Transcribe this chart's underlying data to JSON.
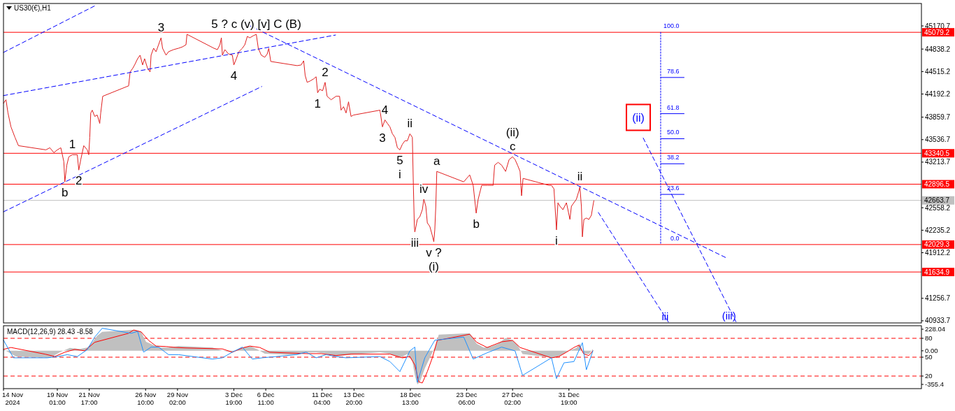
{
  "chart_data": [
    {
      "type": "line",
      "title": "US30(€),H1",
      "xlim": [
        "2024-11-14T13:00",
        "2025-01-30T06:00"
      ],
      "ylim": [
        40903,
        45493
      ],
      "tick_labels": "y",
      "grid": false,
      "yticks": [
        45170.7,
        44838.2,
        44515.2,
        44192.2,
        43859.7,
        43536.7,
        43213.7,
        42558.2,
        42235.2,
        41912.2,
        41256.7,
        40933.7
      ],
      "series": [
        {
          "color": "#e02020",
          "x": [
            "2024-11-14T13:00",
            "2024-11-14T18:00",
            "2024-11-14T22:00",
            "2024-11-15T04:00",
            "2024-11-15T12:00",
            "2024-11-15T19:00",
            "2024-11-18T02:00",
            "2024-11-18T10:00",
            "2024-11-18T18:00",
            "2024-11-19T01:00",
            "2024-11-19T08:00",
            "2024-11-19T14:00",
            "2024-11-19T16:00",
            "2024-11-19T20:00",
            "2024-11-20T00:00",
            "2024-11-20T07:00",
            "2024-11-20T17:00",
            "2024-11-20T20:00",
            "2024-11-21T00:00",
            "2024-11-21T06:00",
            "2024-11-21T13:00",
            "2024-11-21T16:00",
            "2024-11-21T18:00",
            "2024-11-21T20:00",
            "2024-11-21T23:00",
            "2024-11-22T04:00",
            "2024-11-22T09:00",
            "2024-11-22T14:00",
            "2024-11-22T16:00",
            "2024-11-22T20:00",
            "2024-11-25T00:00",
            "2024-11-25T03:00",
            "2024-11-25T08:00",
            "2024-11-25T12:00",
            "2024-11-25T18:00",
            "2024-11-25T23:00",
            "2024-11-26T04:00",
            "2024-11-26T08:00",
            "2024-11-26T14:00",
            "2024-11-26T19:00",
            "2024-11-26T21:00",
            "2024-11-27T02:00",
            "2024-11-27T07:00",
            "2024-11-27T12:00",
            "2024-11-27T17:00",
            "2024-11-27T20:00",
            "2024-11-28T03:00",
            "2024-11-28T08:00",
            "2024-11-28T18:00",
            "2024-11-29T04:00",
            "2024-11-29T12:00",
            "2024-11-29T19:00",
            "2024-11-29T21:00",
            "2024-12-02T03:00",
            "2024-12-02T10:00",
            "2024-12-02T15:00",
            "2024-12-02T18:00",
            "2024-12-02T20:00",
            "2024-12-03T01:00",
            "2024-12-03T08:00",
            "2024-12-03T16:00",
            "2024-12-03T19:00",
            "2024-12-04T00:00",
            "2024-12-04T05:00",
            "2024-12-04T12:00",
            "2024-12-04T17:00",
            "2024-12-04T22:00",
            "2024-12-05T03:00",
            "2024-12-05T10:00",
            "2024-12-05T16:00",
            "2024-12-05T20:00",
            "2024-12-06T02:00",
            "2024-12-06T09:00",
            "2024-12-06T14:00",
            "2024-12-06T17:00",
            "2024-12-06T21:00",
            "2024-12-09T02:00",
            "2024-12-09T10:00",
            "2024-12-09T15:00",
            "2024-12-09T18:00",
            "2024-12-09T22:00",
            "2024-12-10T04:00",
            "2024-12-10T11:00",
            "2024-12-10T16:00",
            "2024-12-10T19:00",
            "2024-12-10T23:00",
            "2024-12-11T05:00",
            "2024-12-11T10:00",
            "2024-12-11T14:00",
            "2024-12-11T22:00",
            "2024-12-12T08:00",
            "2024-12-12T15:00",
            "2024-12-12T18:00",
            "2024-12-12T23:00",
            "2024-12-13T04:00",
            "2024-12-13T09:00",
            "2024-12-13T14:00",
            "2024-12-13T19:00",
            "2024-12-16T00:00",
            "2024-12-16T05:00",
            "2024-12-16T10:00",
            "2024-12-16T15:00",
            "2024-12-16T20:00",
            "2024-12-17T01:00",
            "2024-12-17T06:00",
            "2024-12-17T11:00",
            "2024-12-17T16:00",
            "2024-12-17T21:00",
            "2024-12-18T02:00",
            "2024-12-18T07:00",
            "2024-12-18T12:00",
            "2024-12-18T17:00",
            "2024-12-18T19:00",
            "2024-12-18T21:00",
            "2024-12-18T22:00",
            "2024-12-19T03:00",
            "2024-12-19T08:00",
            "2024-12-19T13:00",
            "2024-12-19T16:00",
            "2024-12-19T20:00",
            "2024-12-19T23:00",
            "2024-12-20T04:00",
            "2024-12-20T09:00",
            "2024-12-20T12:00",
            "2024-12-20T14:00",
            "2024-12-20T16:00",
            "2024-12-20T18:00",
            "2024-12-23T00:00",
            "2024-12-23T12:00",
            "2024-12-23T19:00",
            "2024-12-24T01:00",
            "2024-12-24T05:00",
            "2024-12-24T12:00",
            "2024-12-25T00:00",
            "2024-12-25T11:00",
            "2024-12-25T14:00",
            "2024-12-25T21:00",
            "2024-12-26T04:00",
            "2024-12-26T12:00",
            "2024-12-26T19:00",
            "2024-12-27T02:00",
            "2024-12-27T07:00",
            "2024-12-27T12:00",
            "2024-12-27T17:00",
            "2024-12-27T20:00",
            "2024-12-27T23:00",
            "2024-12-30T03:00",
            "2024-12-30T08:00",
            "2024-12-30T13:00",
            "2024-12-30T16:00",
            "2024-12-30T18:00",
            "2024-12-30T21:00",
            "2024-12-31T01:00",
            "2024-12-31T07:00",
            "2024-12-31T14:00",
            "2024-12-31T17:00",
            "2024-12-31T21:00",
            "2025-01-01T00:00",
            "2025-01-01T05:00",
            "2025-01-01T10:00",
            "2025-01-01T15:00",
            "2025-01-01T17:00",
            "2025-01-01T20:00",
            "2025-01-01T22:00",
            "2025-01-02T01:00",
            "2025-01-02T06:00",
            "2025-01-02T11:00",
            "2025-01-02T16:00",
            "2025-01-02T19:00",
            "2025-01-02T21:00"
          ],
          "values": [
            44060,
            44110,
            43920,
            43720,
            43570,
            43450,
            43390,
            43420,
            43350,
            43390,
            43420,
            43220,
            42930,
            43170,
            43290,
            43320,
            43320,
            43100,
            43250,
            43450,
            43390,
            43320,
            43570,
            43920,
            43960,
            43870,
            43890,
            43770,
            43920,
            44160,
            44310,
            44510,
            44560,
            44610,
            44700,
            44750,
            44610,
            44700,
            44560,
            44510,
            44750,
            44850,
            44800,
            44900,
            45000,
            44850,
            44750,
            44800,
            44830,
            44850,
            44870,
            44900,
            45050,
            44850,
            44830,
            44900,
            45000,
            44750,
            44830,
            44770,
            44750,
            44610,
            44700,
            44800,
            44850,
            44900,
            45020,
            45000,
            45030,
            45050,
            44850,
            44750,
            44720,
            44770,
            44850,
            44660,
            44600,
            44610,
            44670,
            44460,
            44360,
            44380,
            44410,
            44440,
            44210,
            44260,
            44240,
            44360,
            44160,
            44110,
            44160,
            44160,
            43960,
            44010,
            43920,
            44080,
            43870,
            43890,
            43960,
            43720,
            43820,
            43770,
            43720,
            43620,
            43570,
            43420,
            43390,
            43470,
            43520,
            43520,
            43620,
            43570,
            42880,
            42290,
            42210,
            42390,
            42430,
            42530,
            42680,
            42580,
            42340,
            42290,
            42160,
            42070,
            42240,
            42580,
            43080,
            42930,
            43030,
            42880,
            42480,
            42680,
            42880,
            42880,
            42880,
            43170,
            43210,
            43170,
            43080,
            43250,
            43290,
            43250,
            43170,
            43080,
            42730,
            42980,
            42880,
            42880,
            42830,
            42480,
            42240,
            42630,
            42580,
            42530,
            42630,
            42530,
            42390,
            42580,
            42630,
            42680,
            42800,
            42860,
            42580,
            42140,
            42390,
            42410,
            42390,
            42450,
            42580,
            42660
          ]
        },
        {
          "color": "#0000ff",
          "line_style": "dashed",
          "x": [
            "2024-11-14T13:00",
            "2024-11-22T07:00"
          ],
          "values": [
            44790,
            45470
          ]
        },
        {
          "color": "#0000ff",
          "line_style": "dashed",
          "x": [
            "2024-11-14T13:00",
            "2024-12-12T07:00"
          ],
          "values": [
            44170,
            45040
          ]
        },
        {
          "color": "#0000ff",
          "line_style": "dashed",
          "x": [
            "2024-11-14T13:00",
            "2024-12-06T03:00"
          ],
          "values": [
            42500,
            44300
          ]
        },
        {
          "color": "#0000ff",
          "line_style": "dashed",
          "x": [
            "2024-12-05T04:00",
            "2025-01-14T01:00"
          ],
          "values": [
            45170,
            41830
          ]
        },
        {
          "color": "#0000ff",
          "line_style": "dashed",
          "x": [
            "2025-01-03T06:00",
            "2025-01-09T03:00"
          ],
          "values": [
            42490,
            40910
          ]
        },
        {
          "color": "#0000ff",
          "line_style": "dashed",
          "x": [
            "2025-01-07T00:00",
            "2025-01-14T18:00"
          ],
          "values": [
            43560,
            40920
          ]
        },
        {
          "color": "#0000ff",
          "line_style": "dotted",
          "x": [
            "2025-01-08T11:00",
            "2025-01-08T11:00"
          ],
          "values": [
            45079.2,
            42029.3
          ]
        },
        {
          "color": "#0000ff",
          "x": [
            "2025-01-08T11:00",
            "2025-01-10T10:00"
          ],
          "values": [
            44430,
            44430
          ]
        },
        {
          "color": "#0000ff",
          "x": [
            "2025-01-08T11:00",
            "2025-01-10T10:00"
          ],
          "values": [
            43910,
            43910
          ]
        },
        {
          "color": "#0000ff",
          "x": [
            "2025-01-08T11:00",
            "2025-01-10T10:00"
          ],
          "values": [
            43550,
            43550
          ]
        },
        {
          "color": "#0000ff",
          "x": [
            "2025-01-08T11:00",
            "2025-01-10T10:00"
          ],
          "values": [
            43190,
            43190
          ]
        },
        {
          "color": "#0000ff",
          "x": [
            "2025-01-08T11:00",
            "2025-01-10T10:00"
          ],
          "values": [
            42750,
            42750
          ]
        }
      ],
      "annotations": [
        {
          "text": "5 ? c (v) [v] C (B)",
          "x": "2024-12-05T16:00",
          "y": 45050
        },
        {
          "text": "3",
          "x": "2024-11-27T17:00",
          "y": 45000
        },
        {
          "text": "1",
          "x": "2024-11-20T07:00",
          "y": 43320
        },
        {
          "text": "2",
          "x": "2024-11-20T20:00",
          "y": 43100
        },
        {
          "text": "b",
          "x": "2024-11-19T16:00",
          "y": 42930
        },
        {
          "text": "4",
          "x": "2024-12-03T19:00",
          "y": 44610
        },
        {
          "text": "2",
          "x": "2024-12-11T10:00",
          "y": 44360
        },
        {
          "text": "1",
          "x": "2024-12-10T19:00",
          "y": 44210
        },
        {
          "text": "4",
          "x": "2024-12-16T10:00",
          "y": 43820
        },
        {
          "text": "3",
          "x": "2024-12-16T05:00",
          "y": 43720
        },
        {
          "text": "5",
          "x": "2024-12-17T16:00",
          "y": 43390
        },
        {
          "text": "i",
          "x": "2024-12-17T16:00",
          "y": 43390
        },
        {
          "text": "ii",
          "x": "2024-12-18T12:00",
          "y": 43620
        },
        {
          "text": "iii",
          "x": "2024-12-18T22:00",
          "y": 42210
        },
        {
          "text": "iv",
          "x": "2024-12-19T16:00",
          "y": 42680
        },
        {
          "text": "a",
          "x": "2024-12-20T18:00",
          "y": 43080
        },
        {
          "text": "b",
          "x": "2024-12-24T01:00",
          "y": 42480
        },
        {
          "text": "v ?",
          "x": "2024-12-20T12:00",
          "y": 42070
        },
        {
          "text": "(i)",
          "x": "2024-12-20T12:00",
          "y": 42070
        },
        {
          "text": "c",
          "x": "2024-12-27T02:00",
          "y": 43290
        },
        {
          "text": "(ii)",
          "x": "2024-12-27T02:00",
          "y": 43290
        },
        {
          "text": "i",
          "x": "2024-12-30T18:00",
          "y": 42240
        },
        {
          "text": "ii",
          "x": "2025-01-01T17:00",
          "y": 42860
        },
        {
          "text": "(ii)",
          "x": "2025-01-07T00:00",
          "y": 43560
        },
        {
          "text": "iii",
          "x": "2025-01-09T03:00",
          "y": 40910
        },
        {
          "text": "(iii)",
          "x": "2025-01-14T18:00",
          "y": 40920
        },
        {
          "text": "100.0",
          "x": "2025-01-10T10:00",
          "y": 45079.2
        },
        {
          "text": "78.6",
          "x": "2025-01-10T10:00",
          "y": 44430
        },
        {
          "text": "61.8",
          "x": "2025-01-10T10:00",
          "y": 43910
        },
        {
          "text": "50.0",
          "x": "2025-01-10T10:00",
          "y": 43550
        },
        {
          "text": "38.2",
          "x": "2025-01-10T10:00",
          "y": 43190
        },
        {
          "text": "23.6",
          "x": "2025-01-10T10:00",
          "y": 42750
        },
        {
          "text": "0.0",
          "x": "2025-01-10T10:00",
          "y": 42029.3
        }
      ],
      "ref_lines": [
        {
          "axis": "y",
          "value": 45079.2,
          "label": "45079.2",
          "color": "#ff0000"
        },
        {
          "axis": "y",
          "value": 43340.5,
          "label": "43340.5",
          "color": "#ff0000"
        },
        {
          "axis": "y",
          "value": 42896.5,
          "label": "42896.5",
          "color": "#ff0000"
        },
        {
          "axis": "y",
          "value": 42663.7,
          "label": "42663.7",
          "color": "#c0c0c0"
        },
        {
          "axis": "y",
          "value": 42029.3,
          "label": "42029.3",
          "color": "#ff0000"
        },
        {
          "axis": "y",
          "value": 41634.9,
          "label": "41634.9",
          "color": "#ff0000"
        }
      ]
    },
    {
      "type": "line",
      "title": "MACD(12,26,9) 28.43 -8.58",
      "xlim": [
        "2024-11-14T13:00",
        "2025-01-30T06:00"
      ],
      "ylim": [
        -400,
        265
      ],
      "y2lim": [
        0,
        100
      ],
      "grid": false,
      "yticks": [
        228.04,
        {
          "value": 0,
          "label": "0.00"
        },
        -355.4
      ],
      "y2ticks": [
        80,
        50,
        20
      ],
      "xticks": [
        {
          "value": "2024-11-14T13:00",
          "label": "14 Nov 2024"
        },
        {
          "value": "2024-11-19T01:00",
          "label": "19 Nov 01:00"
        },
        {
          "value": "2024-11-21T17:00",
          "label": "21 Nov 17:00"
        },
        {
          "value": "2024-11-26T10:00",
          "label": "26 Nov 10:00"
        },
        {
          "value": "2024-11-29T02:00",
          "label": "29 Nov 02:00"
        },
        {
          "value": "2024-12-03T19:00",
          "label": "3 Dec 19:00"
        },
        {
          "value": "2024-12-06T11:00",
          "label": "6 Dec 11:00"
        },
        {
          "value": "2024-12-11T04:00",
          "label": "11 Dec 04:00"
        },
        {
          "value": "2024-12-13T20:00",
          "label": "13 Dec 20:00"
        },
        {
          "value": "2024-12-18T13:00",
          "label": "18 Dec 13:00"
        },
        {
          "value": "2024-12-23T06:00",
          "label": "23 Dec 06:00"
        },
        {
          "value": "2024-12-27T02:00",
          "label": "27 Dec 02:00"
        },
        {
          "value": "2024-12-31T19:00",
          "label": "31 Dec 19:00"
        }
      ],
      "series": [
        {
          "type": "area",
          "color": "#c0c0c0",
          "x": [
            "2024-11-14T13:00",
            "2024-11-14T23:00",
            "2024-11-15T14:00",
            "2024-11-18T10:00",
            "2024-11-19T06:00",
            "2024-11-20T02:00",
            "2024-11-20T22:00",
            "2024-11-21T13:00",
            "2024-11-21T23:00",
            "2024-11-22T09:00",
            "2024-11-22T19:00",
            "2024-11-25T05:00",
            "2024-11-25T10:00",
            "2024-11-25T15:00",
            "2024-11-26T01:00",
            "2024-11-26T11:00",
            "2024-11-27T02:00",
            "2024-11-27T17:00",
            "2024-11-28T08:00",
            "2024-11-29T04:00",
            "2024-12-02T00:00",
            "2024-12-02T20:00",
            "2024-12-03T16:00",
            "2024-12-04T12:00",
            "2024-12-05T03:00",
            "2024-12-05T18:00",
            "2024-12-06T09:00",
            "2024-12-09T00:00",
            "2024-12-09T20:00",
            "2024-12-10T16:00",
            "2024-12-11T12:00",
            "2024-12-12T08:00",
            "2024-12-13T04:00",
            "2024-12-16T00:00",
            "2024-12-16T20:00",
            "2024-12-17T16:00",
            "2024-12-18T07:00",
            "2024-12-18T17:00",
            "2024-12-18T22:00",
            "2024-12-19T03:00",
            "2024-12-19T08:00",
            "2024-12-19T18:00",
            "2024-12-20T04:00",
            "2024-12-20T14:00",
            "2024-12-20T22:00",
            "2024-12-23T12:00",
            "2024-12-24T02:00",
            "2024-12-24T16:00",
            "2024-12-25T07:00",
            "2024-12-25T21:00",
            "2024-12-26T12:00",
            "2024-12-27T02:00",
            "2024-12-27T12:00",
            "2024-12-27T22:00",
            "2024-12-30T13:00",
            "2024-12-31T04:00",
            "2024-12-31T19:00",
            "2025-01-01T10:00",
            "2025-01-01T17:00",
            "2025-01-02T01:00",
            "2025-01-02T11:00",
            "2025-01-02T19:00"
          ],
          "values": [
            15,
            -15,
            -60,
            -75,
            -15,
            30,
            20,
            35,
            90,
            160,
            200,
            220,
            220,
            220,
            200,
            95,
            60,
            35,
            35,
            50,
            35,
            0,
            -15,
            35,
            50,
            15,
            -30,
            -45,
            -20,
            -15,
            -30,
            -60,
            -45,
            -15,
            -30,
            -75,
            -35,
            -110,
            -260,
            -355,
            -330,
            -185,
            -75,
            35,
            170,
            185,
            75,
            35,
            45,
            75,
            135,
            110,
            60,
            -35,
            -75,
            -45,
            0,
            30,
            75,
            -30,
            -35,
            20
          ]
        },
        {
          "color": "#ff0000",
          "x": [
            "2024-11-14T13:00",
            "2024-11-15T04:00",
            "2024-11-18T00:00",
            "2024-11-18T20:00",
            "2024-11-19T16:00",
            "2024-11-20T12:00",
            "2024-11-21T08:00",
            "2024-11-22T04:00",
            "2024-11-25T00:00",
            "2024-11-25T10:00",
            "2024-11-26T01:00",
            "2024-11-26T16:00",
            "2024-11-27T07:00",
            "2024-11-28T03:00",
            "2024-11-28T23:00",
            "2024-11-29T19:00",
            "2024-12-02T20:00",
            "2024-12-03T16:00",
            "2024-12-04T12:00",
            "2024-12-05T03:00",
            "2024-12-05T23:00",
            "2024-12-06T19:00",
            "2024-12-09T20:00",
            "2024-12-11T02:00",
            "2024-12-12T08:00",
            "2024-12-13T14:00",
            "2024-12-16T20:00",
            "2024-12-17T21:00",
            "2024-12-18T12:00",
            "2024-12-18T22:00",
            "2024-12-19T06:00",
            "2024-12-19T13:00",
            "2024-12-19T23:00",
            "2024-12-20T09:00",
            "2024-12-20T19:00",
            "2024-12-23T12:00",
            "2024-12-24T02:00",
            "2024-12-24T23:00",
            "2024-12-26T04:00",
            "2024-12-27T02:00",
            "2024-12-27T17:00",
            "2024-12-30T08:00",
            "2024-12-30T23:00",
            "2024-12-31T14:00",
            "2025-01-01T05:00",
            "2025-01-01T15:00",
            "2025-01-02T01:00",
            "2025-01-02T11:00",
            "2025-01-02T19:00"
          ],
          "values": [
            15,
            35,
            -35,
            -60,
            -15,
            15,
            0,
            90,
            185,
            220,
            200,
            110,
            50,
            45,
            35,
            30,
            20,
            -15,
            30,
            50,
            35,
            -15,
            -30,
            -30,
            -50,
            -35,
            -35,
            -75,
            -60,
            -150,
            -330,
            -340,
            -220,
            -75,
            110,
            175,
            90,
            35,
            95,
            110,
            35,
            -75,
            -60,
            -15,
            35,
            60,
            -35,
            -50,
            0
          ]
        },
        {
          "axis": "y2",
          "color": "#1e90ff",
          "x": [
            "2024-11-14T13:00",
            "2024-11-15T09:00",
            "2024-11-18T05:00",
            "2024-11-19T01:00",
            "2024-11-19T21:00",
            "2024-11-20T17:00",
            "2024-11-21T13:00",
            "2024-11-22T04:00",
            "2024-11-22T19:00",
            "2024-11-25T05:00",
            "2024-11-25T18:00",
            "2024-11-26T06:00",
            "2024-11-26T21:00",
            "2024-11-27T12:00",
            "2024-11-28T08:00",
            "2024-11-29T04:00",
            "2024-12-02T00:00",
            "2024-12-02T20:00",
            "2024-12-03T16:00",
            "2024-12-04T12:00",
            "2024-12-05T08:00",
            "2024-12-06T04:00",
            "2024-12-09T00:00",
            "2024-12-09T20:00",
            "2024-12-10T16:00",
            "2024-12-11T12:00",
            "2024-12-12T08:00",
            "2024-12-13T04:00",
            "2024-12-16T00:00",
            "2024-12-16T20:00",
            "2024-12-17T16:00",
            "2024-12-18T12:00",
            "2024-12-18T22:00",
            "2024-12-19T03:00",
            "2024-12-19T18:00",
            "2024-12-20T14:00",
            "2024-12-23T00:00",
            "2024-12-23T19:00",
            "2024-12-24T23:00",
            "2024-12-26T04:00",
            "2024-12-27T07:00",
            "2024-12-27T22:00",
            "2024-12-30T08:00",
            "2024-12-30T18:00",
            "2024-12-31T09:00",
            "2025-01-01T05:00",
            "2025-01-01T22:00",
            "2025-01-02T06:00",
            "2025-01-02T19:00"
          ],
          "values": [
            77,
            49,
            49,
            51,
            54,
            51,
            62,
            82,
            96,
            88,
            91,
            58,
            66,
            66,
            54,
            54,
            47,
            49,
            58,
            66,
            47,
            49,
            54,
            58,
            49,
            54,
            51,
            49,
            51,
            43,
            27,
            60,
            66,
            10,
            49,
            77,
            82,
            47,
            57,
            66,
            60,
            21,
            49,
            16,
            41,
            43,
            73,
            30,
            60
          ]
        }
      ],
      "ref_lines": [
        {
          "axis": "y2",
          "value": 80,
          "color": "#ff0000",
          "line_style": "dashed"
        },
        {
          "axis": "y2",
          "value": 50,
          "color": "#ff0000",
          "line_style": "dashed"
        },
        {
          "axis": "y2",
          "value": 20,
          "color": "#ff0000",
          "line_style": "dashed"
        }
      ]
    }
  ]
}
